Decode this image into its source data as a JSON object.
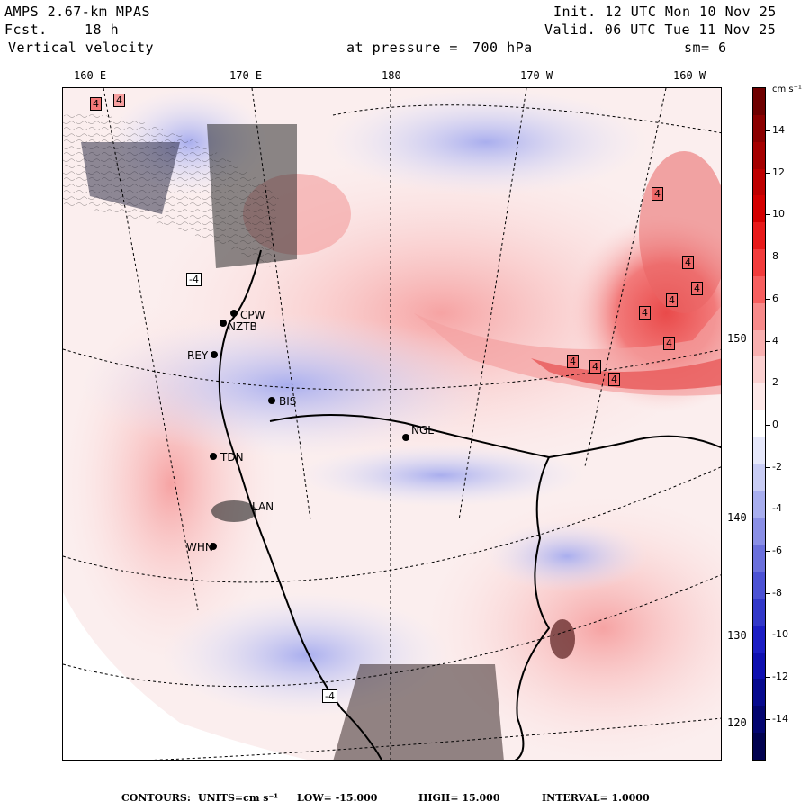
{
  "header": {
    "model": "AMPS 2.67-km MPAS",
    "forecast_label": "Fcst.",
    "forecast_value": "18 h",
    "field": "Vertical velocity",
    "init": "Init. 12 UTC Mon 10 Nov 25",
    "valid": "Valid. 06 UTC Tue 11 Nov 25",
    "level_label": "at pressure =",
    "level_value": "700 hPa",
    "smoothing": "sm= 6"
  },
  "longitude_labels": [
    "160 E",
    "170 E",
    "180",
    "170 W",
    "160 W"
  ],
  "latitude_labels": [
    "150 W",
    "140 W",
    "130 W",
    "120 W"
  ],
  "colorbar": {
    "unit": "cm s⁻¹",
    "labels": [
      "14",
      "12",
      "10",
      "8",
      "6",
      "4",
      "2",
      "0",
      "-2",
      "-4",
      "-6",
      "-8",
      "-10",
      "-12",
      "-14"
    ],
    "colors": [
      "#6e0000",
      "#8b0000",
      "#a50000",
      "#be0000",
      "#d40000",
      "#e81a1a",
      "#f23c3c",
      "#f75f5f",
      "#f88a8a",
      "#f9b0b0",
      "#fbd0d0",
      "#fde8e8",
      "#ffffff",
      "#e6e8fb",
      "#c9cdf5",
      "#a8aeef",
      "#8a8fe6",
      "#6b70dc",
      "#4c52d4",
      "#3238c9",
      "#1c1ec4",
      "#0f10b0",
      "#070a8e",
      "#030570",
      "#010250"
    ]
  },
  "stations": [
    {
      "name": "CPW"
    },
    {
      "name": "NZTB"
    },
    {
      "name": "REY"
    },
    {
      "name": "BIS"
    },
    {
      "name": "NGL"
    },
    {
      "name": "TDN"
    },
    {
      "name": "LAN"
    },
    {
      "name": "WHN"
    }
  ],
  "contour_markers": [
    "4",
    "4",
    "4",
    "4",
    "4",
    "4",
    "4",
    "4",
    "4",
    "4",
    "4",
    "-4",
    "-4"
  ],
  "footer": {
    "contours_label": "CONTOURS:",
    "units": "UNITS=cm s⁻¹",
    "low": "LOW= -15.000",
    "high": "HIGH= 15.000",
    "interval": "INTERVAL= 1.0000"
  }
}
